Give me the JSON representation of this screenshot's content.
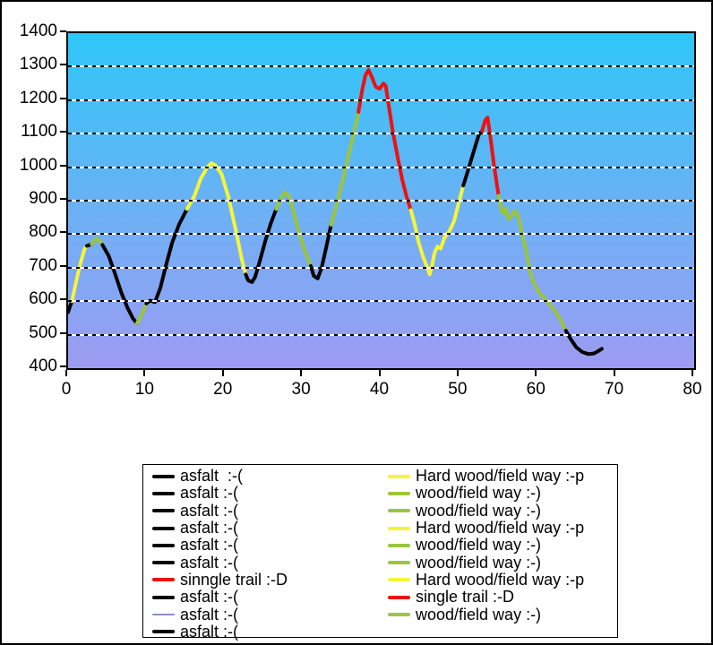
{
  "colors": {
    "asfalt": "#000000",
    "hard_wood": "#f5f53a",
    "wood_field": "#9bc53b",
    "single_trail": "#ee1111",
    "asfalt_thin_blue": "#8e8ecf",
    "plot_gradient_top": "#2ec6f8",
    "plot_gradient_bottom": "#9d9bf2",
    "axis": "#000000",
    "legend_bg": "#ffffff"
  },
  "chart_data": {
    "type": "line",
    "title": "",
    "xlabel": "",
    "ylabel": "",
    "xlim": [
      0,
      80
    ],
    "ylim": [
      400,
      1400
    ],
    "x_ticks": [
      0,
      10,
      20,
      30,
      40,
      50,
      60,
      70,
      80
    ],
    "y_ticks": [
      400,
      500,
      600,
      700,
      800,
      900,
      1000,
      1100,
      1200,
      1300,
      1400
    ],
    "grid": "horizontal-dashed-black-on-white",
    "legend_position": "bottom",
    "series": [
      {
        "name": "asfalt  :-(",
        "color": "#000000",
        "width": 4,
        "points": [
          [
            0,
            567
          ],
          [
            0.3,
            588
          ],
          [
            0.5,
            600
          ]
        ]
      },
      {
        "name": "Hard wood/field way :-p",
        "color": "#f5f53a",
        "width": 4,
        "points": [
          [
            0.5,
            600
          ],
          [
            1.0,
            655
          ],
          [
            1.6,
            715
          ],
          [
            2.1,
            755
          ],
          [
            2.4,
            765
          ]
        ]
      },
      {
        "name": "asfalt :-(",
        "color": "#000000",
        "width": 4,
        "points": [
          [
            2.4,
            765
          ],
          [
            3.0,
            770
          ]
        ]
      },
      {
        "name": "wood/field way :-)",
        "color": "#9bc53b",
        "width": 4,
        "points": [
          [
            3.0,
            770
          ],
          [
            3.4,
            783
          ],
          [
            3.7,
            787
          ],
          [
            4.1,
            778
          ],
          [
            4.4,
            768
          ]
        ]
      },
      {
        "name": "asfalt :-(",
        "color": "#000000",
        "width": 4,
        "points": [
          [
            4.4,
            768
          ],
          [
            5.2,
            735
          ],
          [
            6.0,
            682
          ],
          [
            6.8,
            626
          ],
          [
            7.6,
            580
          ],
          [
            8.3,
            548
          ],
          [
            8.8,
            534
          ]
        ]
      },
      {
        "name": "wood/field way :-)",
        "color": "#9bc53b",
        "width": 4,
        "points": [
          [
            8.8,
            534
          ],
          [
            9.4,
            560
          ],
          [
            10.0,
            593
          ]
        ]
      },
      {
        "name": "asfalt :-(",
        "color": "#000000",
        "width": 4,
        "points": [
          [
            10.0,
            593
          ],
          [
            10.5,
            602
          ],
          [
            11.1,
            597
          ],
          [
            11.8,
            640
          ],
          [
            12.5,
            706
          ],
          [
            13.3,
            775
          ],
          [
            14.2,
            830
          ],
          [
            15.2,
            875
          ]
        ]
      },
      {
        "name": "Hard wood/field way :-p",
        "color": "#f5f53a",
        "width": 4,
        "points": [
          [
            15.2,
            875
          ],
          [
            16.1,
            912
          ],
          [
            17.0,
            968
          ],
          [
            17.8,
            1000
          ],
          [
            18.3,
            1012
          ],
          [
            18.8,
            1006
          ],
          [
            19.6,
            980
          ],
          [
            20.5,
            910
          ],
          [
            21.4,
            815
          ],
          [
            22.2,
            725
          ],
          [
            22.7,
            680
          ]
        ]
      },
      {
        "name": "asfalt :-(",
        "color": "#000000",
        "width": 4,
        "points": [
          [
            22.7,
            680
          ],
          [
            23.0,
            662
          ],
          [
            23.5,
            657
          ],
          [
            23.9,
            672
          ],
          [
            24.5,
            720
          ],
          [
            25.2,
            780
          ],
          [
            25.9,
            832
          ],
          [
            26.6,
            875
          ]
        ]
      },
      {
        "name": "wood/field way :-)",
        "color": "#9bc53b",
        "width": 4,
        "points": [
          [
            26.6,
            875
          ],
          [
            27.1,
            903
          ],
          [
            27.7,
            925
          ],
          [
            28.2,
            915
          ],
          [
            28.8,
            868
          ],
          [
            29.5,
            805
          ],
          [
            30.2,
            752
          ],
          [
            31.0,
            705
          ]
        ]
      },
      {
        "name": "asfalt :-(",
        "color": "#000000",
        "width": 4,
        "points": [
          [
            31.0,
            705
          ],
          [
            31.4,
            675
          ],
          [
            31.9,
            668
          ],
          [
            32.4,
            700
          ],
          [
            33.0,
            762
          ],
          [
            33.6,
            828
          ]
        ]
      },
      {
        "name": "wood/field way :-)",
        "color": "#9bc53b",
        "width": 4,
        "points": [
          [
            33.6,
            828
          ],
          [
            34.4,
            895
          ],
          [
            35.1,
            962
          ],
          [
            35.8,
            1032
          ],
          [
            36.5,
            1100
          ],
          [
            37.1,
            1165
          ]
        ]
      },
      {
        "name": "sinngle trail :-D",
        "color": "#ee1111",
        "width": 4,
        "points": [
          [
            37.1,
            1165
          ],
          [
            37.6,
            1232
          ],
          [
            38.0,
            1275
          ],
          [
            38.4,
            1290
          ],
          [
            38.8,
            1270
          ],
          [
            39.3,
            1240
          ],
          [
            39.8,
            1234
          ],
          [
            40.3,
            1250
          ],
          [
            40.6,
            1242
          ],
          [
            41.0,
            1180
          ],
          [
            41.5,
            1105
          ],
          [
            42.1,
            1032
          ],
          [
            42.7,
            962
          ],
          [
            43.3,
            908
          ],
          [
            43.8,
            872
          ]
        ]
      },
      {
        "name": "Hard wood/field way :-p",
        "color": "#f5f53a",
        "width": 4,
        "points": [
          [
            43.8,
            872
          ],
          [
            44.3,
            828
          ],
          [
            44.8,
            775
          ],
          [
            45.4,
            730
          ],
          [
            45.9,
            700
          ],
          [
            46.2,
            680
          ],
          [
            46.5,
            705
          ],
          [
            46.8,
            742
          ],
          [
            47.2,
            763
          ],
          [
            47.6,
            757
          ],
          [
            48.1,
            790
          ],
          [
            48.7,
            808
          ],
          [
            49.3,
            838
          ],
          [
            49.9,
            892
          ],
          [
            50.5,
            945
          ]
        ]
      },
      {
        "name": "asfalt :-(",
        "color": "#000000",
        "width": 4,
        "points": [
          [
            50.5,
            945
          ],
          [
            51.1,
            990
          ],
          [
            51.8,
            1045
          ],
          [
            52.5,
            1098
          ],
          [
            52.9,
            1108
          ]
        ]
      },
      {
        "name": "single trail :-D",
        "color": "#ee1111",
        "width": 4,
        "points": [
          [
            52.9,
            1108
          ],
          [
            53.3,
            1140
          ],
          [
            53.6,
            1148
          ],
          [
            53.9,
            1100
          ],
          [
            54.4,
            1010
          ],
          [
            55.0,
            915
          ]
        ]
      },
      {
        "name": "wood/field way :-)",
        "color": "#9bc53b",
        "width": 4,
        "points": [
          [
            55.0,
            915
          ],
          [
            55.3,
            880
          ],
          [
            55.6,
            862
          ],
          [
            55.9,
            878
          ],
          [
            56.3,
            845
          ],
          [
            56.7,
            856
          ],
          [
            57.1,
            870
          ],
          [
            57.5,
            855
          ],
          [
            58.0,
            800
          ],
          [
            58.5,
            755
          ],
          [
            59.0,
            690
          ],
          [
            59.5,
            655
          ],
          [
            60.2,
            625
          ],
          [
            61.0,
            605
          ],
          [
            61.9,
            580
          ],
          [
            62.8,
            550
          ],
          [
            63.6,
            512
          ]
        ]
      },
      {
        "name": "asfalt :-(",
        "color": "#000000",
        "width": 4,
        "points": [
          [
            63.6,
            512
          ],
          [
            64.2,
            488
          ],
          [
            64.9,
            463
          ],
          [
            65.7,
            448
          ],
          [
            66.5,
            442
          ],
          [
            67.2,
            444
          ],
          [
            67.8,
            452
          ],
          [
            68.2,
            458
          ]
        ]
      }
    ]
  },
  "legend": {
    "columns": [
      {
        "items": [
          {
            "label": "asfalt  :-(",
            "color": "#000000",
            "thin": false
          },
          {
            "label": "asfalt :-(",
            "color": "#000000",
            "thin": false
          },
          {
            "label": "asfalt :-(",
            "color": "#000000",
            "thin": false
          },
          {
            "label": "asfalt :-(",
            "color": "#000000",
            "thin": false
          },
          {
            "label": "asfalt :-(",
            "color": "#000000",
            "thin": false
          },
          {
            "label": "asfalt :-(",
            "color": "#000000",
            "thin": false
          },
          {
            "label": "sinngle trail :-D",
            "color": "#ee1111",
            "thin": false
          },
          {
            "label": "asfalt :-(",
            "color": "#000000",
            "thin": false
          },
          {
            "label": "asfalt :-(",
            "color": "#8e8ecf",
            "thin": true
          },
          {
            "label": "asfalt :-(",
            "color": "#000000",
            "thin": false
          }
        ]
      },
      {
        "items": [
          {
            "label": "Hard wood/field way :-p",
            "color": "#f5f53a",
            "thin": false
          },
          {
            "label": "wood/field way :-)",
            "color": "#9bc53b",
            "thin": false
          },
          {
            "label": "wood/field way :-)",
            "color": "#9bc53b",
            "thin": false
          },
          {
            "label": "Hard wood/field way :-p",
            "color": "#f5f53a",
            "thin": false
          },
          {
            "label": "wood/field way :-)",
            "color": "#9bc53b",
            "thin": false
          },
          {
            "label": "wood/field way :-)",
            "color": "#9bc53b",
            "thin": false
          },
          {
            "label": "Hard wood/field way :-p",
            "color": "#f5f53a",
            "thin": false
          },
          {
            "label": "single trail :-D",
            "color": "#ee1111",
            "thin": false
          },
          {
            "label": "wood/field way :-)",
            "color": "#9bc53b",
            "thin": false
          }
        ]
      }
    ]
  }
}
